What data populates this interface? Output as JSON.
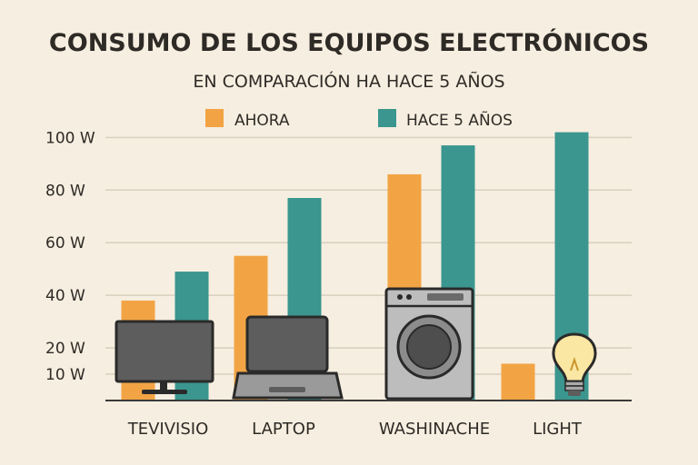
{
  "chart_data": {
    "type": "bar",
    "title": "CONSUMO DE LOS EQUIPOS ELECTRÓNICOS",
    "subtitle": "EN COMPARACIÓN HA HACE 5 AÑOS",
    "categories": [
      "TEVIVISIO",
      "LAPTOP",
      "WASHINACHE",
      "LIGHT"
    ],
    "series": [
      {
        "name": "AHORA",
        "color": "#f2a444",
        "values": [
          38,
          55,
          86,
          14
        ]
      },
      {
        "name": "HACE 5 AÑOS",
        "color": "#3a968f",
        "values": [
          49,
          77,
          97,
          102
        ]
      }
    ],
    "y_ticks": [
      {
        "value": 10,
        "label": "10 W"
      },
      {
        "value": 20,
        "label": "20 W"
      },
      {
        "value": 40,
        "label": "40 W"
      },
      {
        "value": 60,
        "label": "60 W"
      },
      {
        "value": 80,
        "label": "80 W"
      },
      {
        "value": 100,
        "label": "100 W"
      }
    ],
    "ylim": [
      0,
      106
    ],
    "grid": true,
    "legend": "top",
    "icons": [
      "tv-icon",
      "laptop-icon",
      "washing-machine-icon",
      "lightbulb-icon"
    ]
  }
}
